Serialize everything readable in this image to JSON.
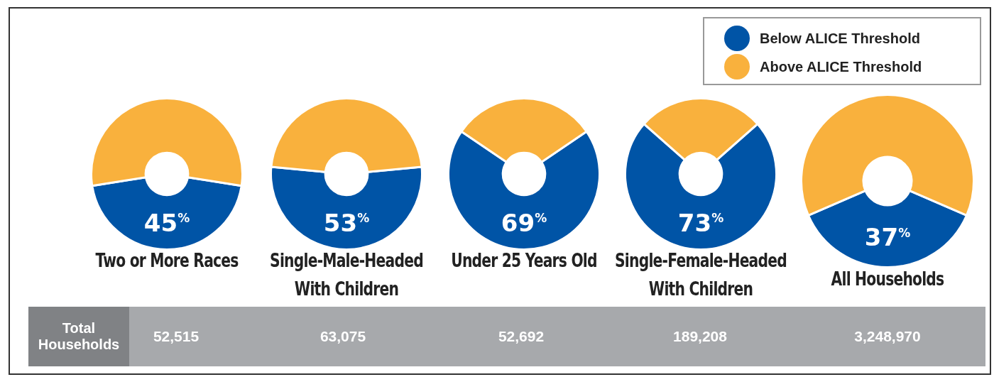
{
  "chart_data": [
    {
      "type": "donut",
      "title": "Two or More Races",
      "categories": [
        "Below ALICE Threshold",
        "Above ALICE Threshold"
      ],
      "values": [
        45,
        55
      ],
      "colors": [
        "#0054a6",
        "#f9b13d"
      ],
      "value_labels": [
        "45%",
        null
      ],
      "legend": "top right"
    },
    {
      "type": "donut",
      "title": "Single-Male-Headed With Children",
      "categories": [
        null,
        null
      ],
      "values": [
        53,
        47
      ],
      "colors": [
        "#0054a6",
        "#f9b13d"
      ],
      "value_labels": [
        "53%",
        null
      ]
    },
    {
      "type": "donut",
      "title": "Under 25 Years Old",
      "categories": [
        null,
        null
      ],
      "values": [
        69,
        31
      ],
      "colors": [
        "#0054a6",
        "#f9b13d"
      ],
      "value_labels": [
        "69%",
        null
      ]
    },
    {
      "type": "donut",
      "title": "Single-Female-Headed With Children",
      "categories": [
        null,
        null
      ],
      "values": [
        73,
        27
      ],
      "colors": [
        "#0054a6",
        "#f9b13d"
      ],
      "value_labels": [
        "73%",
        null
      ]
    },
    {
      "type": "donut",
      "title": "All Households",
      "categories": [
        null,
        null
      ],
      "values": [
        37,
        63
      ],
      "colors": [
        "#0054a6",
        "#f9b13d"
      ],
      "value_labels": [
        "37%",
        null
      ]
    },
    {
      "type": "other",
      "title": "Total Households",
      "annotations": [
        "52,515",
        "63,075",
        "52,692",
        "189,208",
        "3,248,970"
      ]
    }
  ]
}
